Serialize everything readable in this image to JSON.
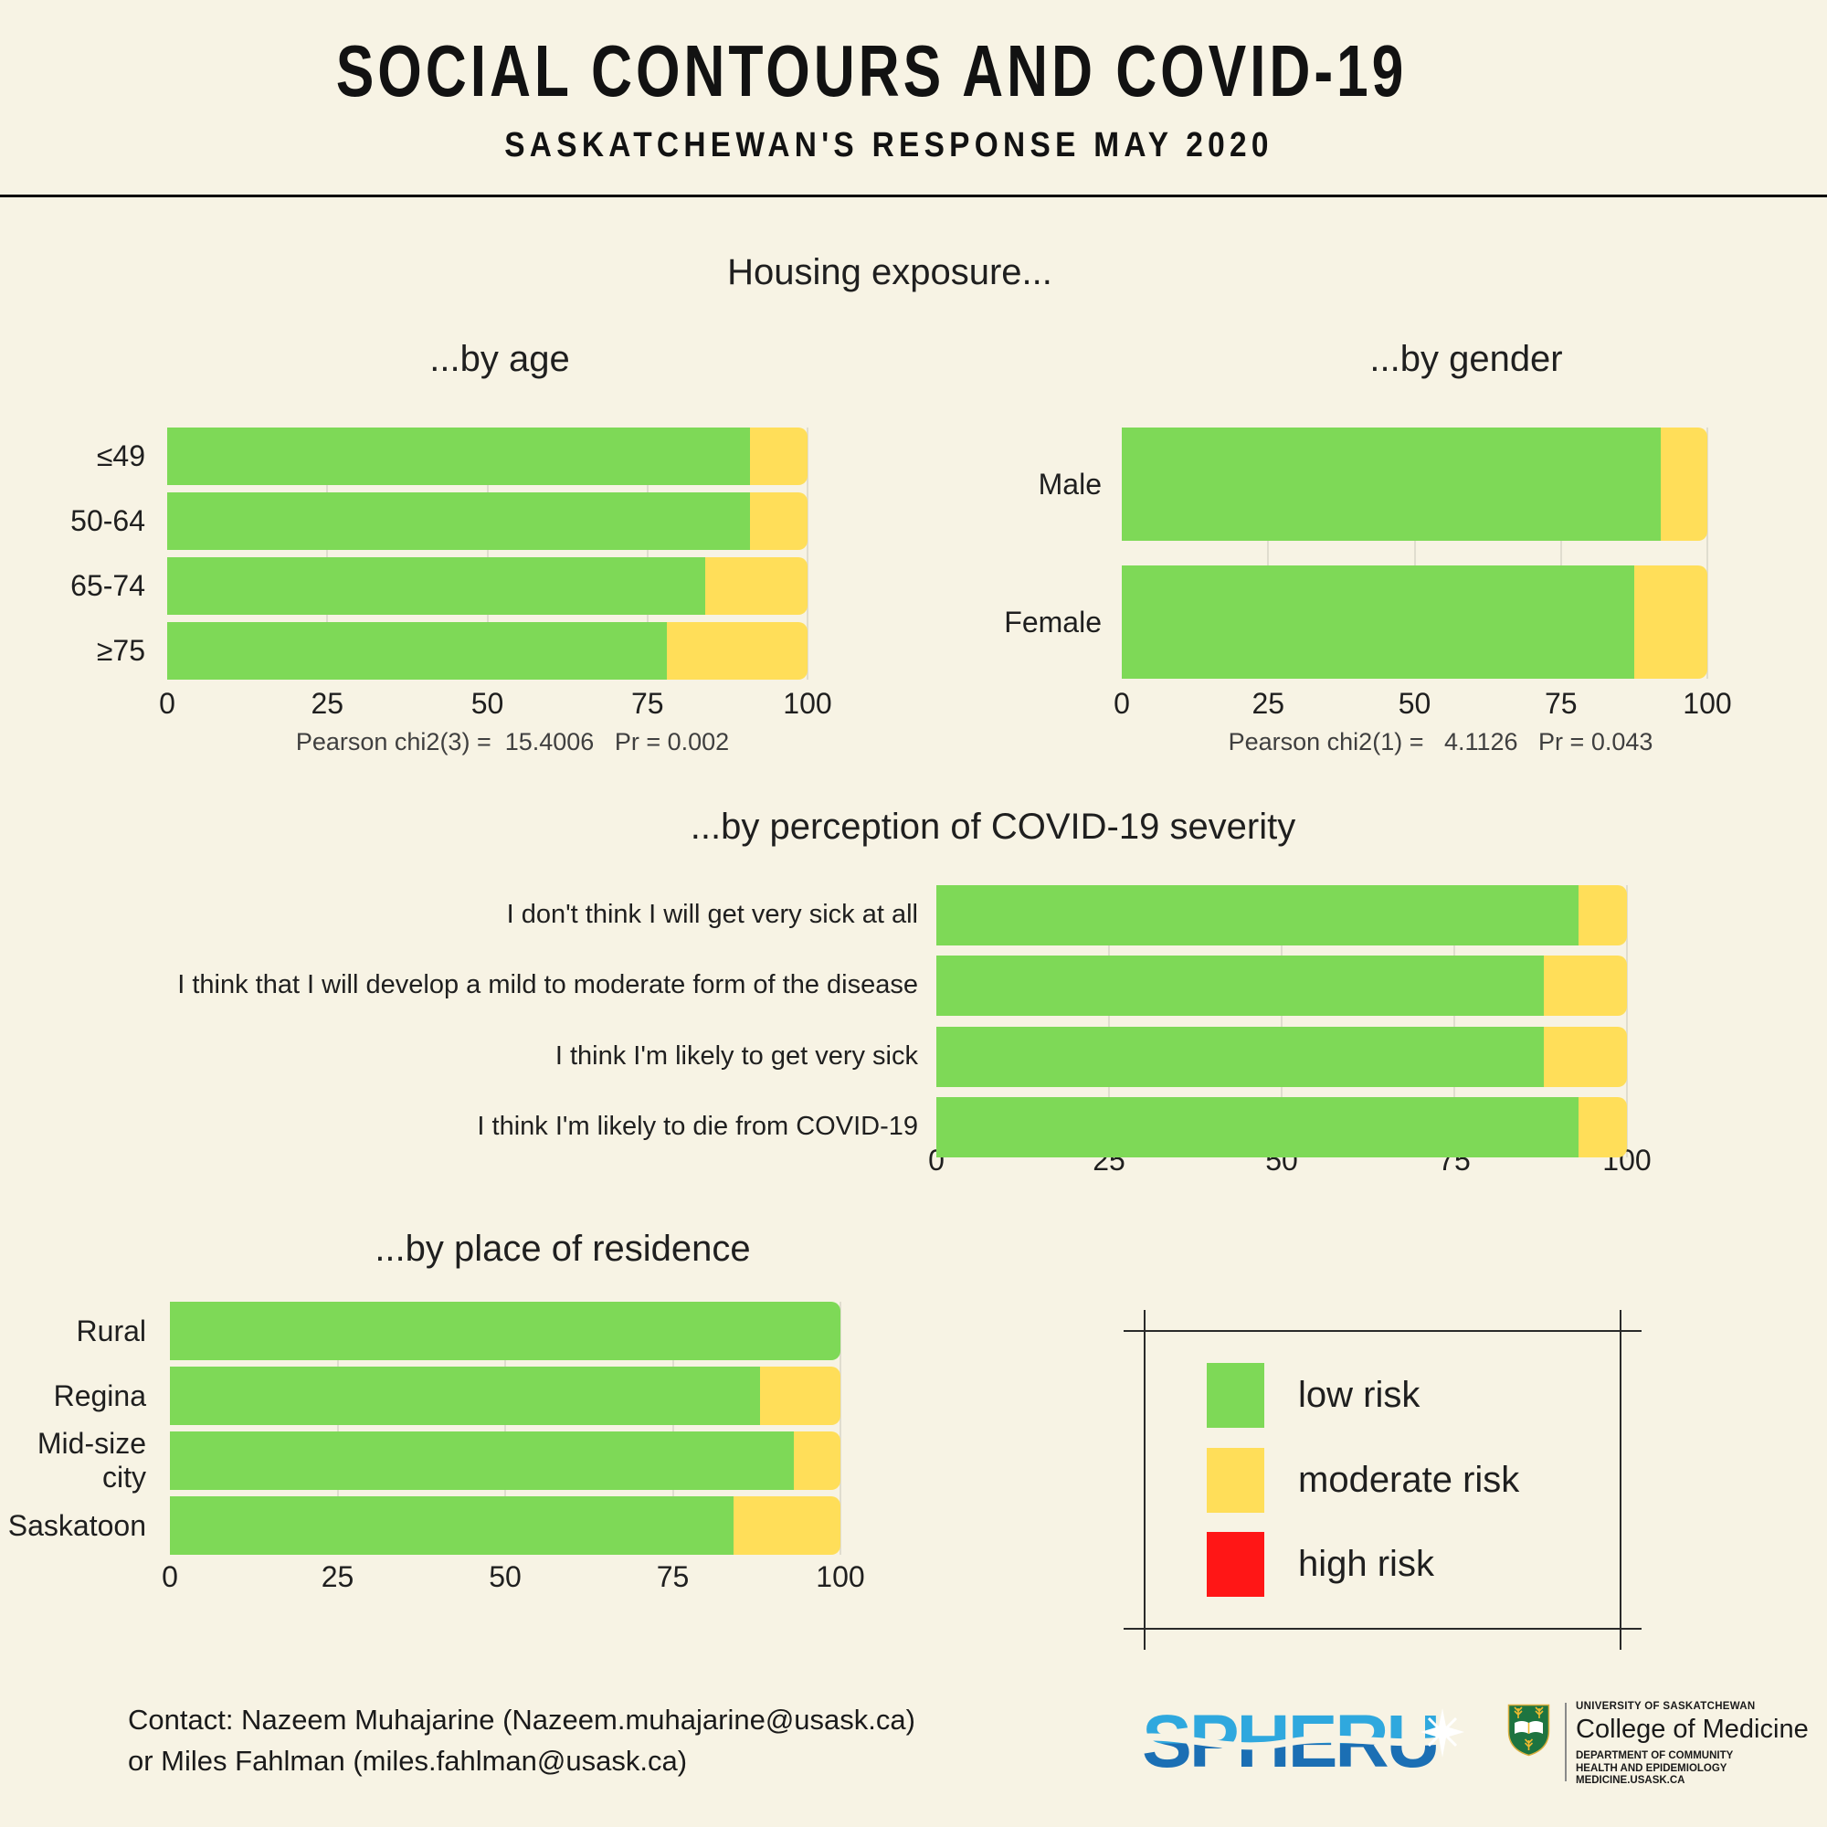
{
  "header": {
    "title": "SOCIAL CONTOURS AND COVID-19",
    "subtitle": "SASKATCHEWAN'S RESPONSE MAY 2020",
    "section_heading": "Housing exposure..."
  },
  "colors": {
    "background": "#F7F3E4",
    "low_risk_green": "#7ED957",
    "moderate_risk_yellow": "#FFDE59",
    "high_risk_red": "#FF1616"
  },
  "chart_data": [
    {
      "id": "age",
      "type": "bar",
      "stacked": true,
      "orientation": "horizontal",
      "title": "...by age",
      "categories": [
        "≤49",
        "50-64",
        "65-74",
        "≥75"
      ],
      "series": [
        {
          "name": "low risk",
          "color": "#7ED957",
          "values": [
            91,
            91,
            84,
            78
          ]
        },
        {
          "name": "moderate risk",
          "color": "#FFDE59",
          "values": [
            9,
            9,
            16,
            22
          ]
        }
      ],
      "x_ticks": [
        0,
        25,
        50,
        75,
        100
      ],
      "xlim": [
        0,
        100
      ],
      "stat": "Pearson chi2(3) =  15.4006   Pr = 0.002"
    },
    {
      "id": "gender",
      "type": "bar",
      "stacked": true,
      "orientation": "horizontal",
      "title": "...by gender",
      "categories": [
        "Male",
        "Female"
      ],
      "series": [
        {
          "name": "low risk",
          "color": "#7ED957",
          "values": [
            92,
            87.5
          ]
        },
        {
          "name": "moderate risk",
          "color": "#FFDE59",
          "values": [
            8,
            12.5
          ]
        }
      ],
      "x_ticks": [
        0,
        25,
        50,
        75,
        100
      ],
      "xlim": [
        0,
        100
      ],
      "stat": "Pearson chi2(1) =   4.1126   Pr = 0.043"
    },
    {
      "id": "perception",
      "type": "bar",
      "stacked": true,
      "orientation": "horizontal",
      "title": "...by perception of COVID-19 severity",
      "categories": [
        "I don't think I will get very sick at all",
        "I think that I will develop a mild to moderate form of the disease",
        "I think I'm likely to get very sick",
        "I think I'm likely to die from COVID-19"
      ],
      "series": [
        {
          "name": "low risk",
          "color": "#7ED957",
          "values": [
            93,
            88,
            88,
            93
          ]
        },
        {
          "name": "moderate risk",
          "color": "#FFDE59",
          "values": [
            7,
            12,
            12,
            7
          ]
        }
      ],
      "x_ticks": [
        0,
        25,
        50,
        75,
        100
      ],
      "xlim": [
        0,
        100
      ],
      "stat": ""
    },
    {
      "id": "residence",
      "type": "bar",
      "stacked": true,
      "orientation": "horizontal",
      "title": "...by place of residence",
      "categories": [
        "Rural",
        "Regina",
        "Mid-size city",
        "Saskatoon"
      ],
      "series": [
        {
          "name": "low risk",
          "color": "#7ED957",
          "values": [
            100,
            88,
            93,
            84
          ]
        },
        {
          "name": "moderate risk",
          "color": "#FFDE59",
          "values": [
            0,
            12,
            7,
            16
          ]
        }
      ],
      "x_ticks": [
        0,
        25,
        50,
        75,
        100
      ],
      "xlim": [
        0,
        100
      ],
      "stat": ""
    }
  ],
  "legend": {
    "items": [
      {
        "label": "low risk",
        "color": "#7ED957"
      },
      {
        "label": "moderate risk",
        "color": "#FFDE59"
      },
      {
        "label": "high risk",
        "color": "#FF1616"
      }
    ]
  },
  "footer": {
    "contact_line1": "Contact: Nazeem Muhajarine (Nazeem.muhajarine@usask.ca)",
    "contact_line2": "or Miles Fahlman (miles.fahlman@usask.ca)",
    "spheru_logo_text": "SPHERU",
    "usask": {
      "line1": "UNIVERSITY OF SASKATCHEWAN",
      "line2": "College of Medicine",
      "line3": "DEPARTMENT OF COMMUNITY",
      "line4": "HEALTH AND EPIDEMIOLOGY",
      "line5": "MEDICINE.USASK.CA"
    }
  }
}
